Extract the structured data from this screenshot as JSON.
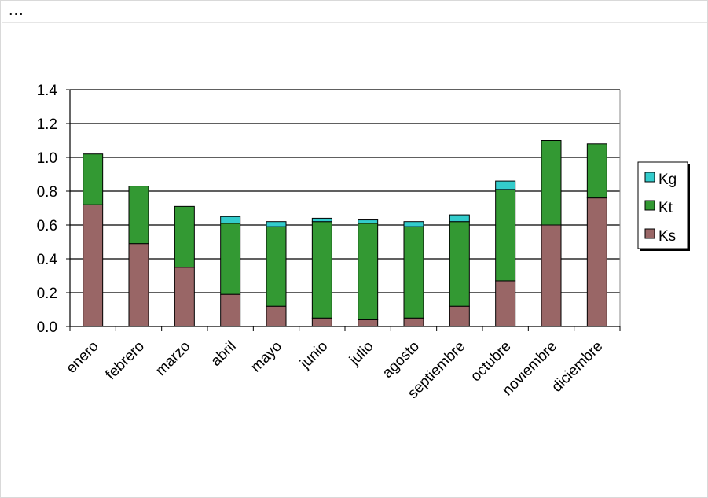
{
  "toolbar": {
    "more_label": "..."
  },
  "colors": {
    "Ks": "#996666",
    "Kt": "#339933",
    "Kg": "#33cccc",
    "grid": "#000000"
  },
  "chart_data": {
    "type": "bar",
    "stacked": true,
    "title": "",
    "xlabel": "",
    "ylabel": "",
    "categories": [
      "enero",
      "febrero",
      "marzo",
      "abril",
      "mayo",
      "junio",
      "julio",
      "agosto",
      "septiembre",
      "octubre",
      "noviembre",
      "diciembre"
    ],
    "series": [
      {
        "name": "Ks",
        "values": [
          0.72,
          0.49,
          0.35,
          0.19,
          0.12,
          0.05,
          0.04,
          0.05,
          0.12,
          0.27,
          0.6,
          0.76
        ]
      },
      {
        "name": "Kt",
        "values": [
          0.3,
          0.34,
          0.36,
          0.42,
          0.47,
          0.57,
          0.57,
          0.54,
          0.5,
          0.54,
          0.5,
          0.32
        ]
      },
      {
        "name": "Kg",
        "values": [
          0.0,
          0.0,
          0.0,
          0.04,
          0.03,
          0.02,
          0.02,
          0.03,
          0.04,
          0.05,
          0.0,
          0.0
        ]
      }
    ],
    "ylim": [
      0,
      1.4
    ],
    "yticks": [
      "0.0",
      "0.2",
      "0.4",
      "0.6",
      "0.8",
      "1.0",
      "1.2",
      "1.4"
    ],
    "grid": true,
    "legend": {
      "position": "right",
      "entries": [
        "Kg",
        "Kt",
        "Ks"
      ]
    }
  }
}
